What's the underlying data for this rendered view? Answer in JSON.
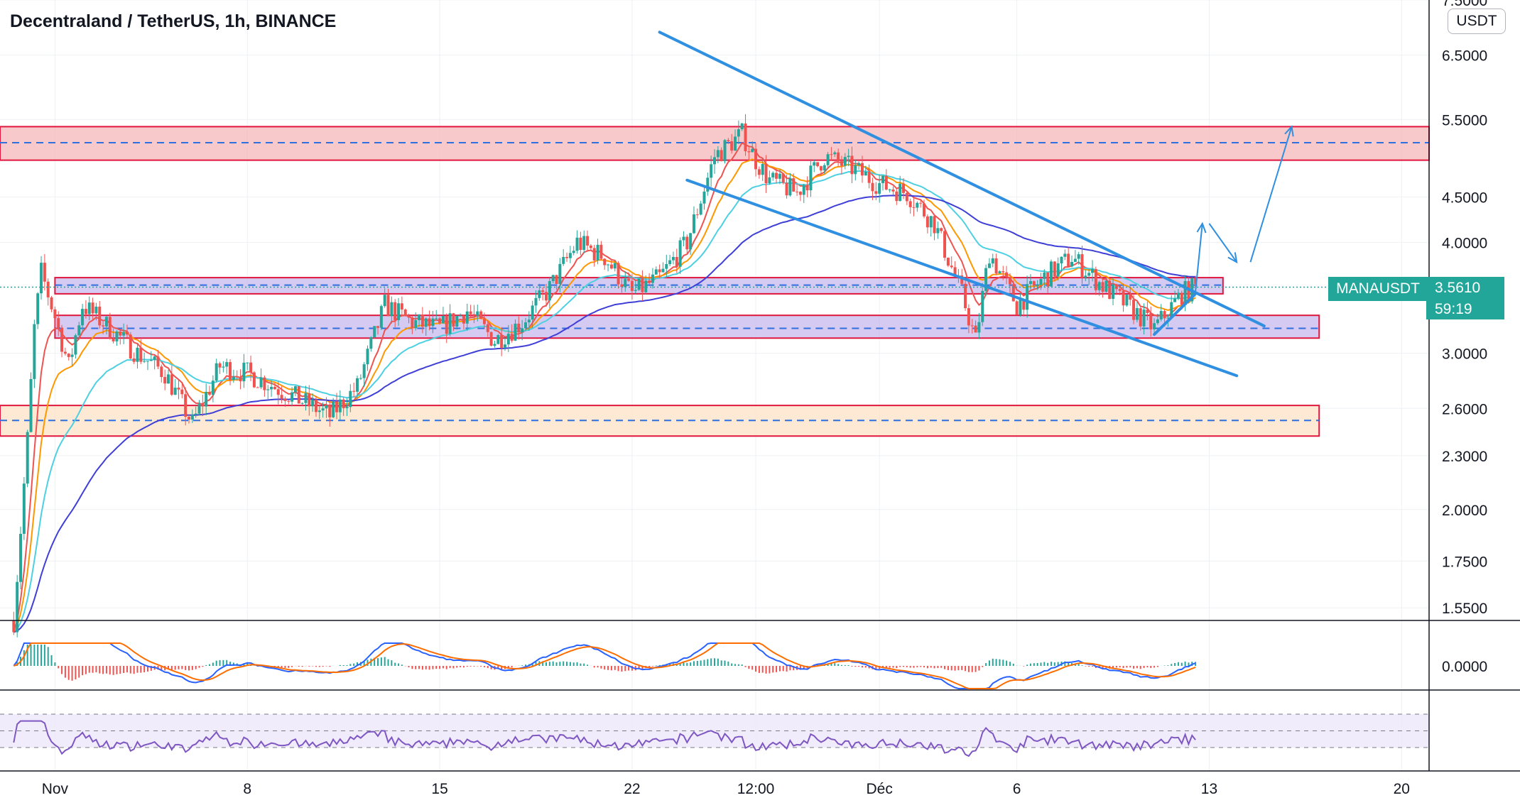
{
  "title": "Decentraland / TetherUS, 1h, BINANCE",
  "currency": "USDT",
  "symbol": "MANAUSDT",
  "last_price": "3.5610",
  "countdown": "59:19",
  "colors": {
    "up": "#26a69a",
    "down": "#ef5350",
    "ema_fast": "#ef5350",
    "ema_mid": "#ff9800",
    "ema_slow": "#4dd0e1",
    "ma_long": "#3f3fd8",
    "trend": "#2f8fe0",
    "rsi": "#7e57c2",
    "macd": "#2962ff",
    "signal": "#ff6d00",
    "zone_red": "#f6b7b9",
    "zone_purple": "#c7b8ec",
    "zone_orange": "#fde2c6"
  },
  "chart_data": {
    "type": "candlestick",
    "scale": "log",
    "ylim": [
      1.5,
      7.5
    ],
    "price_ticks": [
      "7.5000",
      "6.5000",
      "5.5000",
      "4.5000",
      "4.0000",
      "3.0000",
      "2.6000",
      "2.3000",
      "2.0000",
      "1.7500",
      "1.5500"
    ],
    "macd_ticks": [
      "0.0000"
    ],
    "xlim": [
      "2021-10-30",
      "2021-12-21"
    ],
    "x_ticks": [
      {
        "date": "2021-11-01",
        "label": "Nov"
      },
      {
        "date": "2021-11-08",
        "label": "8"
      },
      {
        "date": "2021-11-15",
        "label": "15"
      },
      {
        "date": "2021-11-22",
        "label": "22"
      },
      {
        "date": "2021-11-26T12:00",
        "label": "12:00"
      },
      {
        "date": "2021-12-01",
        "label": "Déc"
      },
      {
        "date": "2021-12-06",
        "label": "6"
      },
      {
        "date": "2021-12-13",
        "label": "13"
      },
      {
        "date": "2021-12-20",
        "label": "20"
      }
    ],
    "price_path": [
      [
        "2021-10-30",
        1.1
      ],
      [
        "2021-10-30T12:00",
        1.5
      ],
      [
        "2021-10-31",
        2.4
      ],
      [
        "2021-10-31T06:00",
        3.2
      ],
      [
        "2021-10-31T12:00",
        3.7
      ],
      [
        "2021-11-01",
        3.3
      ],
      [
        "2021-11-01T12:00",
        2.9
      ],
      [
        "2021-11-02",
        3.4
      ],
      [
        "2021-11-03",
        3.2
      ],
      [
        "2021-11-04",
        3.0
      ],
      [
        "2021-11-05",
        2.85
      ],
      [
        "2021-11-06",
        2.5
      ],
      [
        "2021-11-07",
        2.9
      ],
      [
        "2021-11-08",
        2.85
      ],
      [
        "2021-11-09",
        2.75
      ],
      [
        "2021-11-10",
        2.65
      ],
      [
        "2021-11-11",
        2.55
      ],
      [
        "2021-11-12",
        2.75
      ],
      [
        "2021-11-13",
        3.4
      ],
      [
        "2021-11-14",
        3.25
      ],
      [
        "2021-11-15",
        3.2
      ],
      [
        "2021-11-16",
        3.35
      ],
      [
        "2021-11-17",
        3.1
      ],
      [
        "2021-11-18",
        3.25
      ],
      [
        "2021-11-19",
        3.55
      ],
      [
        "2021-11-20",
        4.0
      ],
      [
        "2021-11-21",
        3.85
      ],
      [
        "2021-11-22",
        3.5
      ],
      [
        "2021-11-23",
        3.65
      ],
      [
        "2021-11-24",
        4.0
      ],
      [
        "2021-11-25",
        5.0
      ],
      [
        "2021-11-26",
        5.3
      ],
      [
        "2021-11-26T12:00",
        4.95
      ],
      [
        "2021-11-27",
        4.7
      ],
      [
        "2021-11-28",
        4.55
      ],
      [
        "2021-11-29",
        5.0
      ],
      [
        "2021-11-30",
        4.85
      ],
      [
        "2021-12-01",
        4.65
      ],
      [
        "2021-12-02",
        4.55
      ],
      [
        "2021-12-03",
        4.2
      ],
      [
        "2021-12-04",
        3.5
      ],
      [
        "2021-12-04T12:00",
        3.1
      ],
      [
        "2021-12-05",
        3.9
      ],
      [
        "2021-12-06",
        3.4
      ],
      [
        "2021-12-07",
        3.65
      ],
      [
        "2021-12-08",
        3.85
      ],
      [
        "2021-12-09",
        3.6
      ],
      [
        "2021-12-10",
        3.4
      ],
      [
        "2021-12-11",
        3.2
      ],
      [
        "2021-12-12",
        3.5
      ],
      [
        "2021-12-12T12:00",
        3.561
      ]
    ],
    "zones": [
      {
        "name": "resistance-zone",
        "low": 4.95,
        "high": 5.4,
        "mid": 5.18,
        "from": "2021-10-30",
        "to": "2021-12-21"
      },
      {
        "name": "upper-support-zone",
        "low": 3.5,
        "high": 3.65,
        "mid": 3.58,
        "from": "2021-11-01",
        "to": "2021-12-13T12:00"
      },
      {
        "name": "lower-support-zone",
        "low": 3.12,
        "high": 3.31,
        "mid": 3.2,
        "from": "2021-11-01",
        "to": "2021-12-17"
      },
      {
        "name": "base-zone",
        "low": 2.42,
        "high": 2.62,
        "mid": 2.52,
        "from": "2021-10-30",
        "to": "2021-12-17"
      }
    ],
    "trendlines": [
      {
        "from": [
          "2021-11-23",
          6.9
        ],
        "to": [
          "2021-12-15",
          3.22
        ]
      },
      {
        "from": [
          "2021-11-24",
          4.7
        ],
        "to": [
          "2021-12-14",
          2.83
        ]
      },
      {
        "from": [
          "2021-12-11",
          3.15
        ],
        "to": [
          "2021-12-12T12:00",
          3.5
        ]
      }
    ],
    "projection": [
      [
        "2021-12-12T12:00",
        3.52
      ],
      [
        "2021-12-12T18:00",
        4.2
      ],
      [
        "2021-12-13",
        4.2
      ],
      [
        "2021-12-14",
        3.8
      ],
      [
        "2021-12-14T12:00",
        3.8
      ],
      [
        "2021-12-16",
        5.4
      ]
    ],
    "last_price": 3.561
  }
}
